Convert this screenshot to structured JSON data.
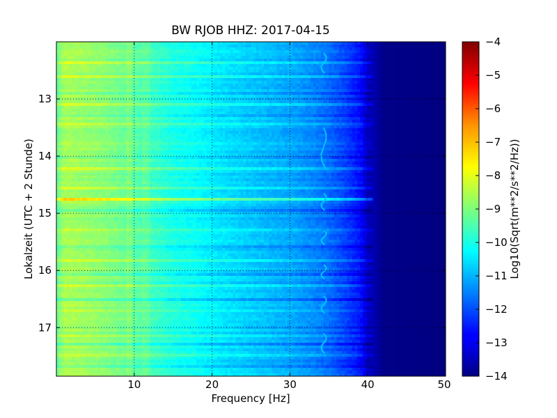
{
  "chart_data": {
    "type": "heatmap",
    "title": "BW RJOB HHZ: 2017-04-15",
    "xlabel": "Frequency [Hz]",
    "ylabel": "Lokalzeit (UTC + 2 Stunde)",
    "xlim": [
      0,
      50
    ],
    "ylim": [
      17.85,
      12.0
    ],
    "x_ticks": [
      10,
      20,
      30,
      40,
      50
    ],
    "x_tick_labels": [
      "10",
      "20",
      "30",
      "40",
      "50"
    ],
    "y_ticks": [
      13,
      14,
      15,
      16,
      17
    ],
    "y_tick_labels": [
      "13",
      "14",
      "15",
      "16",
      "17"
    ],
    "grid": true,
    "colormap": "jet",
    "colorbar": {
      "label": "Log10(Sqrt(m**2/s**2/Hz))",
      "range": [
        -14,
        -4
      ],
      "ticks": [
        -4,
        -5,
        -6,
        -7,
        -8,
        -9,
        -10,
        -11,
        -12,
        -13,
        -14
      ],
      "tick_labels": [
        "−4",
        "−5",
        "−6",
        "−7",
        "−8",
        "−9",
        "−10",
        "−11",
        "−12",
        "−13",
        "−14"
      ]
    },
    "profile": {
      "frequency_hz": [
        0,
        1,
        3,
        6,
        9,
        12,
        15,
        18,
        21,
        24,
        27,
        30,
        33,
        35,
        37,
        39,
        40,
        42,
        50
      ],
      "log10_amplitude": [
        -9.3,
        -8.6,
        -8.7,
        -8.9,
        -9.2,
        -9.6,
        -10.0,
        -10.2,
        -10.5,
        -10.7,
        -10.9,
        -11.1,
        -11.4,
        -11.7,
        -12.1,
        -12.6,
        -13.3,
        -13.9,
        -14.0
      ]
    },
    "bright_bands_time": [
      12.35,
      12.6,
      13.1,
      13.45,
      14.2,
      14.55,
      14.75,
      15.3,
      15.85,
      16.25,
      16.7,
      17.15,
      17.5
    ],
    "dark_bands_time": [
      12.9,
      13.3,
      14.0,
      14.95,
      15.6,
      16.05,
      16.5,
      17.3,
      17.7
    ],
    "strong_band_time": 14.75,
    "tremor_line_freq_hz": 34.5
  }
}
